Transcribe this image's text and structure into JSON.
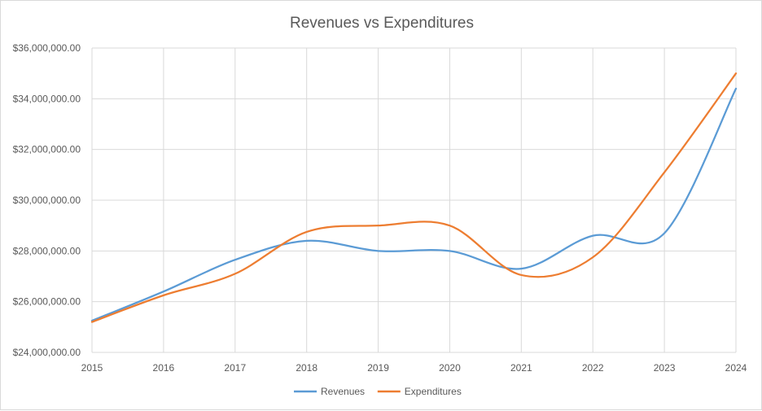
{
  "chart_data": {
    "type": "line",
    "title": "Revenues vs Expenditures",
    "xlabel": "",
    "ylabel": "",
    "x": [
      "2015",
      "2016",
      "2017",
      "2018",
      "2019",
      "2020",
      "2021",
      "2022",
      "2023",
      "2024"
    ],
    "y_ticks": [
      "$24,000,000.00",
      "$26,000,000.00",
      "$28,000,000.00",
      "$30,000,000.00",
      "$32,000,000.00",
      "$34,000,000.00",
      "$36,000,000.00"
    ],
    "ylim": [
      24000000,
      36000000
    ],
    "grid": true,
    "legend": "bottom",
    "smooth": true,
    "series": [
      {
        "name": "Revenues",
        "color": "#5b9bd5",
        "values": [
          25250000,
          26400000,
          27650000,
          28400000,
          28000000,
          28000000,
          27300000,
          28600000,
          28700000,
          34400000
        ]
      },
      {
        "name": "Expenditures",
        "color": "#ed7d31",
        "values": [
          25200000,
          26250000,
          27100000,
          28750000,
          29000000,
          29000000,
          27050000,
          27750000,
          31100000,
          35000000
        ]
      }
    ]
  }
}
